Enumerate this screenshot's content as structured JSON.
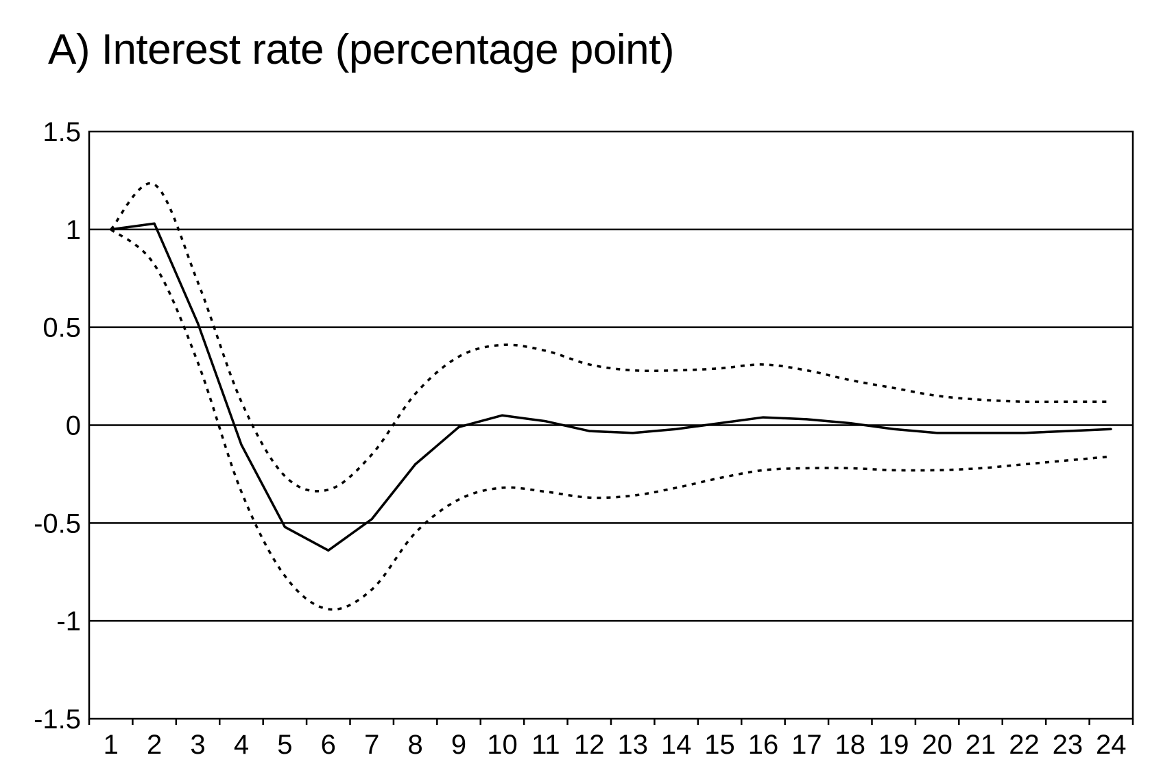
{
  "chart_data": {
    "type": "line",
    "title": "A) Interest rate (percentage point)",
    "xlabel": "",
    "ylabel": "",
    "x": [
      1,
      2,
      3,
      4,
      5,
      6,
      7,
      8,
      9,
      10,
      11,
      12,
      13,
      14,
      15,
      16,
      17,
      18,
      19,
      20,
      21,
      22,
      23,
      24
    ],
    "ylim": [
      -1.5,
      1.5
    ],
    "yticks": [
      "1.5",
      "1",
      "0.5",
      "0",
      "-0.5",
      "-1",
      "-1.5"
    ],
    "xticks": [
      "1",
      "2",
      "3",
      "4",
      "5",
      "6",
      "7",
      "8",
      "9",
      "10",
      "11",
      "12",
      "13",
      "14",
      "15",
      "16",
      "17",
      "18",
      "19",
      "20",
      "21",
      "22",
      "23",
      "24"
    ],
    "grid": true,
    "series": [
      {
        "style": "solid",
        "values": [
          1.0,
          1.03,
          0.52,
          -0.1,
          -0.52,
          -0.64,
          -0.48,
          -0.2,
          -0.01,
          0.05,
          0.02,
          -0.03,
          -0.04,
          -0.02,
          0.01,
          0.04,
          0.03,
          0.01,
          -0.02,
          -0.04,
          -0.04,
          -0.04,
          -0.03,
          -0.02
        ]
      },
      {
        "style": "dotted",
        "values": [
          1.0,
          1.23,
          0.73,
          0.12,
          -0.26,
          -0.33,
          -0.15,
          0.16,
          0.35,
          0.41,
          0.38,
          0.31,
          0.28,
          0.28,
          0.29,
          0.31,
          0.28,
          0.23,
          0.19,
          0.15,
          0.13,
          0.12,
          0.12,
          0.12
        ]
      },
      {
        "style": "dotted",
        "values": [
          1.0,
          0.82,
          0.32,
          -0.34,
          -0.77,
          -0.94,
          -0.84,
          -0.55,
          -0.38,
          -0.32,
          -0.34,
          -0.37,
          -0.36,
          -0.32,
          -0.27,
          -0.23,
          -0.22,
          -0.22,
          -0.23,
          -0.23,
          -0.22,
          -0.2,
          -0.18,
          -0.16
        ]
      }
    ]
  }
}
